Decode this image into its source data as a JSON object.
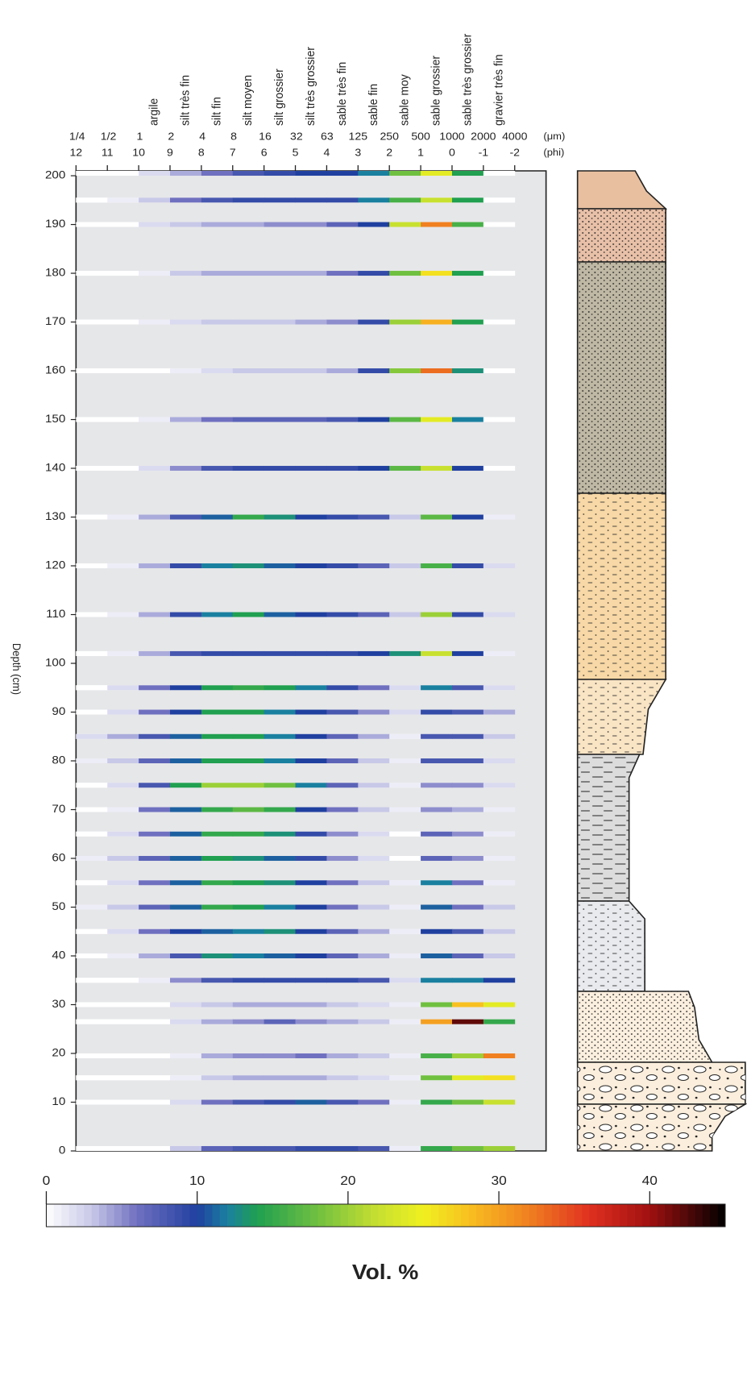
{
  "chart_data": {
    "type": "heatmap",
    "bins": [
      12,
      11,
      10,
      9,
      8,
      7,
      6,
      5,
      4,
      3,
      2,
      1,
      0,
      -1,
      -2
    ],
    "xlim": [
      12,
      -3
    ],
    "xticks": [
      12,
      11,
      10,
      9,
      8,
      7,
      6,
      5,
      4,
      3,
      2,
      1,
      0,
      -1,
      -2
    ],
    "x_unit_label": "(phi)",
    "x2ticks": [
      {
        "value": 0.25,
        "label": "1/4"
      },
      {
        "value": 0.5,
        "label": "1/2"
      },
      1,
      2,
      4,
      8,
      16,
      32,
      63,
      125,
      250,
      500,
      1000,
      2000,
      4000
    ],
    "x2_unit_label": "(μm)",
    "size_classes": [
      "argile",
      "silt très fin",
      "silt fin",
      "silt moyen",
      "silt grossier",
      "silt très grossier",
      "sable très fin",
      "sable fin",
      "sable moy",
      "sable grossier",
      "sable très grossier",
      "gravier très fin"
    ],
    "ylabel": "Depth (cm)",
    "ylim": [
      0,
      201
    ],
    "yticks": [
      0,
      10,
      20,
      30,
      40,
      50,
      60,
      70,
      80,
      90,
      100,
      110,
      120,
      130,
      140,
      150,
      160,
      170,
      180,
      190,
      200
    ],
    "depths": [
      200.5,
      195,
      190,
      180,
      170,
      160,
      150,
      140,
      130,
      120,
      110,
      102,
      95,
      90,
      85,
      80,
      75,
      70,
      65,
      60,
      55,
      50,
      45,
      40,
      35,
      30,
      26.5,
      19.5,
      15,
      10,
      0.5
    ],
    "values": [
      [
        0,
        0,
        2,
        4,
        6,
        8,
        9,
        10,
        10,
        12,
        18,
        24,
        14,
        0
      ],
      [
        0,
        1,
        3,
        6,
        8,
        9,
        9,
        9,
        9,
        12,
        16,
        22,
        14,
        0
      ],
      [
        0,
        0,
        2,
        3,
        4,
        4,
        5,
        5,
        7,
        10,
        22,
        32,
        16,
        0
      ],
      [
        0,
        0,
        1,
        3,
        4,
        4,
        4,
        4,
        6,
        9,
        18,
        26,
        14,
        0
      ],
      [
        0,
        0,
        1,
        2,
        3,
        3,
        3,
        4,
        5,
        9,
        20,
        29,
        14,
        0
      ],
      [
        0,
        0,
        0,
        1,
        2,
        3,
        3,
        3,
        4,
        9,
        19,
        33,
        13,
        0
      ],
      [
        0,
        0,
        1,
        4,
        6,
        7,
        7,
        7,
        8,
        10,
        17,
        24,
        12,
        0
      ],
      [
        0,
        0,
        2,
        5,
        8,
        9,
        9,
        9,
        9,
        10,
        17,
        22,
        10,
        0
      ],
      [
        0,
        1,
        4,
        8,
        11,
        15,
        13,
        10,
        9,
        8,
        3,
        17,
        10,
        1
      ],
      [
        0,
        1,
        4,
        9,
        12,
        13,
        11,
        10,
        9,
        7,
        3,
        16,
        9,
        2
      ],
      [
        0,
        1,
        4,
        9,
        12,
        14,
        11,
        10,
        9,
        7,
        3,
        20,
        9,
        2
      ],
      [
        0,
        1,
        4,
        8,
        9,
        9,
        9,
        9,
        9,
        10,
        13,
        22,
        10,
        1
      ],
      [
        0,
        2,
        6,
        10,
        14,
        15,
        14,
        12,
        9,
        6,
        2,
        12,
        8,
        2
      ],
      [
        0,
        2,
        6,
        10,
        14,
        14,
        12,
        10,
        8,
        5,
        2,
        9,
        8,
        4
      ],
      [
        2,
        4,
        8,
        11,
        14,
        14,
        12,
        10,
        7,
        4,
        1,
        8,
        8,
        3
      ],
      [
        1,
        3,
        7,
        11,
        14,
        14,
        12,
        10,
        7,
        3,
        1,
        8,
        8,
        2
      ],
      [
        0,
        2,
        8,
        14,
        20,
        20,
        18,
        12,
        7,
        3,
        1,
        5,
        5,
        2
      ],
      [
        0,
        1,
        6,
        11,
        15,
        17,
        15,
        10,
        6,
        3,
        1,
        5,
        4,
        1
      ],
      [
        0,
        2,
        6,
        11,
        15,
        15,
        13,
        9,
        5,
        2,
        0,
        7,
        5,
        1
      ],
      [
        1,
        3,
        7,
        11,
        14,
        13,
        11,
        9,
        5,
        2,
        0,
        7,
        5,
        1
      ],
      [
        0,
        2,
        6,
        11,
        15,
        14,
        13,
        10,
        6,
        3,
        1,
        12,
        6,
        1
      ],
      [
        1,
        3,
        7,
        11,
        15,
        14,
        12,
        10,
        6,
        3,
        1,
        11,
        6,
        3
      ],
      [
        0,
        2,
        6,
        10,
        11,
        12,
        13,
        10,
        7,
        4,
        1,
        10,
        8,
        3
      ],
      [
        0,
        1,
        4,
        8,
        13,
        12,
        11,
        10,
        7,
        4,
        1,
        11,
        7,
        3
      ],
      [
        0,
        0,
        1,
        5,
        8,
        9,
        9,
        9,
        9,
        8,
        2,
        12,
        12,
        10
      ],
      [
        0,
        0,
        0,
        2,
        3,
        4,
        4,
        4,
        3,
        2,
        1,
        18,
        28,
        24
      ],
      [
        0,
        0,
        0,
        2,
        4,
        5,
        7,
        5,
        4,
        3,
        1,
        30,
        42,
        15
      ],
      [
        0,
        0,
        0,
        1,
        4,
        5,
        5,
        6,
        4,
        3,
        1,
        16,
        20,
        32
      ],
      [
        0,
        0,
        0,
        1,
        3,
        4,
        4,
        4,
        3,
        2,
        1,
        18,
        24,
        26
      ],
      [
        0,
        0,
        0,
        2,
        6,
        8,
        9,
        11,
        8,
        6,
        1,
        15,
        18,
        22
      ],
      [
        0,
        0,
        0,
        3,
        7,
        8,
        8,
        9,
        9,
        8,
        1,
        15,
        18,
        20
      ]
    ],
    "clim": [
      0,
      45
    ],
    "cticks": [
      0,
      10,
      20,
      30,
      40
    ],
    "colorbar_label": "Vol.  %",
    "colorscale": [
      {
        "value": 0,
        "color": "#ffffff"
      },
      {
        "value": 3,
        "color": "#c8c8e8"
      },
      {
        "value": 6,
        "color": "#7070c0"
      },
      {
        "value": 10,
        "color": "#2040a0"
      },
      {
        "value": 12,
        "color": "#1a80a0"
      },
      {
        "value": 14,
        "color": "#20a050"
      },
      {
        "value": 18,
        "color": "#70c040"
      },
      {
        "value": 22,
        "color": "#c8e030"
      },
      {
        "value": 25,
        "color": "#f0f020"
      },
      {
        "value": 28,
        "color": "#f8c020"
      },
      {
        "value": 32,
        "color": "#f08020"
      },
      {
        "value": 36,
        "color": "#e03020"
      },
      {
        "value": 40,
        "color": "#a01010"
      },
      {
        "value": 45,
        "color": "#000000"
      }
    ],
    "plot_background": "#e6e7e9"
  }
}
